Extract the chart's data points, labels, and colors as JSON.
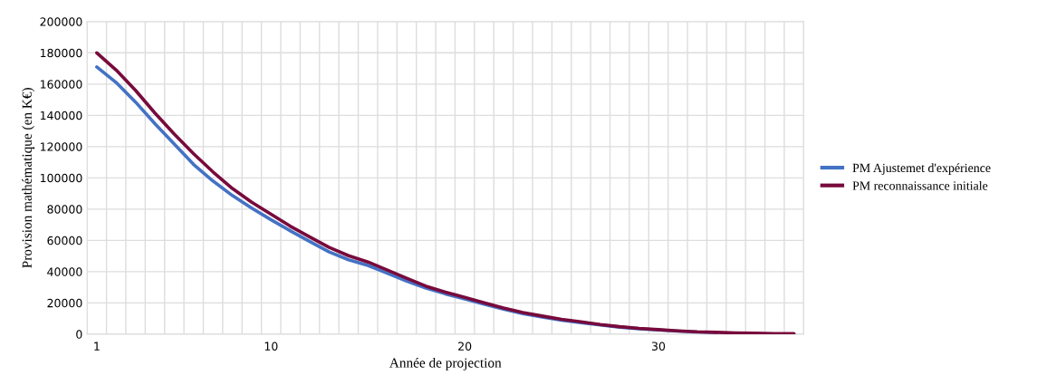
{
  "chart_data": {
    "type": "line",
    "xlabel": "Année de projection",
    "ylabel": "Provision mathématique (en K€)",
    "categories": [
      "1",
      null,
      null,
      null,
      null,
      null,
      null,
      null,
      null,
      "10",
      null,
      null,
      null,
      null,
      null,
      null,
      null,
      null,
      null,
      "20",
      null,
      null,
      null,
      null,
      null,
      null,
      null,
      null,
      null,
      "30",
      null,
      null,
      null,
      null,
      null,
      null,
      null
    ],
    "series": [
      {
        "name": "PM Ajustemet d'expérience",
        "color": "#4472c4",
        "values": [
          171000,
          161000,
          148500,
          134700,
          121600,
          108600,
          98000,
          88700,
          80600,
          73200,
          66100,
          59300,
          52600,
          47600,
          44000,
          39000,
          34000,
          29500,
          25800,
          22600,
          19200,
          16000,
          13200,
          11000,
          9000,
          7400,
          5900,
          4500,
          3500,
          2700,
          2000,
          1400,
          1100,
          null,
          null,
          null,
          null
        ]
      },
      {
        "name": "PM reconnaissance initiale",
        "color": "#780a3c",
        "values": [
          180000,
          169000,
          156000,
          141500,
          128000,
          115400,
          103800,
          93200,
          84400,
          76700,
          69000,
          62200,
          55500,
          50200,
          46200,
          41000,
          35800,
          30700,
          26900,
          23600,
          20100,
          16800,
          13900,
          11600,
          9500,
          7900,
          6200,
          4800,
          3700,
          2900,
          2100,
          1500,
          1200,
          800,
          600,
          400,
          400
        ]
      }
    ],
    "ylim": [
      0,
      200000
    ],
    "yticks": [
      0,
      20000,
      40000,
      60000,
      80000,
      100000,
      120000,
      140000,
      160000,
      180000,
      200000
    ],
    "grid": true,
    "legend": "right",
    "marker": "none",
    "line_style": "solid"
  }
}
